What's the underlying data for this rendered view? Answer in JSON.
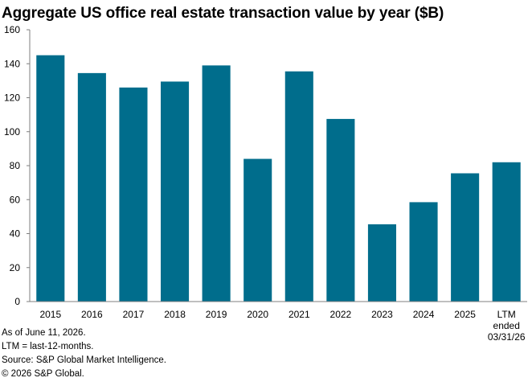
{
  "chart_data": {
    "type": "bar",
    "title": "Aggregate US office real estate transaction value by year ($B)",
    "categories": [
      "2015",
      "2016",
      "2017",
      "2018",
      "2019",
      "2020",
      "2021",
      "2022",
      "2023",
      "2024",
      "2025",
      "LTM ended 03/31/26"
    ],
    "category_label_lines": [
      [
        "2015"
      ],
      [
        "2016"
      ],
      [
        "2017"
      ],
      [
        "2018"
      ],
      [
        "2019"
      ],
      [
        "2020"
      ],
      [
        "2021"
      ],
      [
        "2022"
      ],
      [
        "2023"
      ],
      [
        "2024"
      ],
      [
        "2025"
      ],
      [
        "LTM",
        "ended",
        "03/31/26"
      ]
    ],
    "values": [
      145,
      134.5,
      126,
      129.5,
      139,
      84,
      135.5,
      107.5,
      45.5,
      58.5,
      75.5,
      82
    ],
    "ylim": [
      0,
      160
    ],
    "yticks": [
      0,
      20,
      40,
      60,
      80,
      100,
      120,
      140,
      160
    ],
    "xlabel": "",
    "ylabel": "",
    "grid": false,
    "bar_color": "#006d8c"
  },
  "footnotes": [
    "As of June 11, 2026.",
    "LTM = last-12-months.",
    "Source: S&P Global Market Intelligence.",
    "© 2026 S&P Global."
  ]
}
